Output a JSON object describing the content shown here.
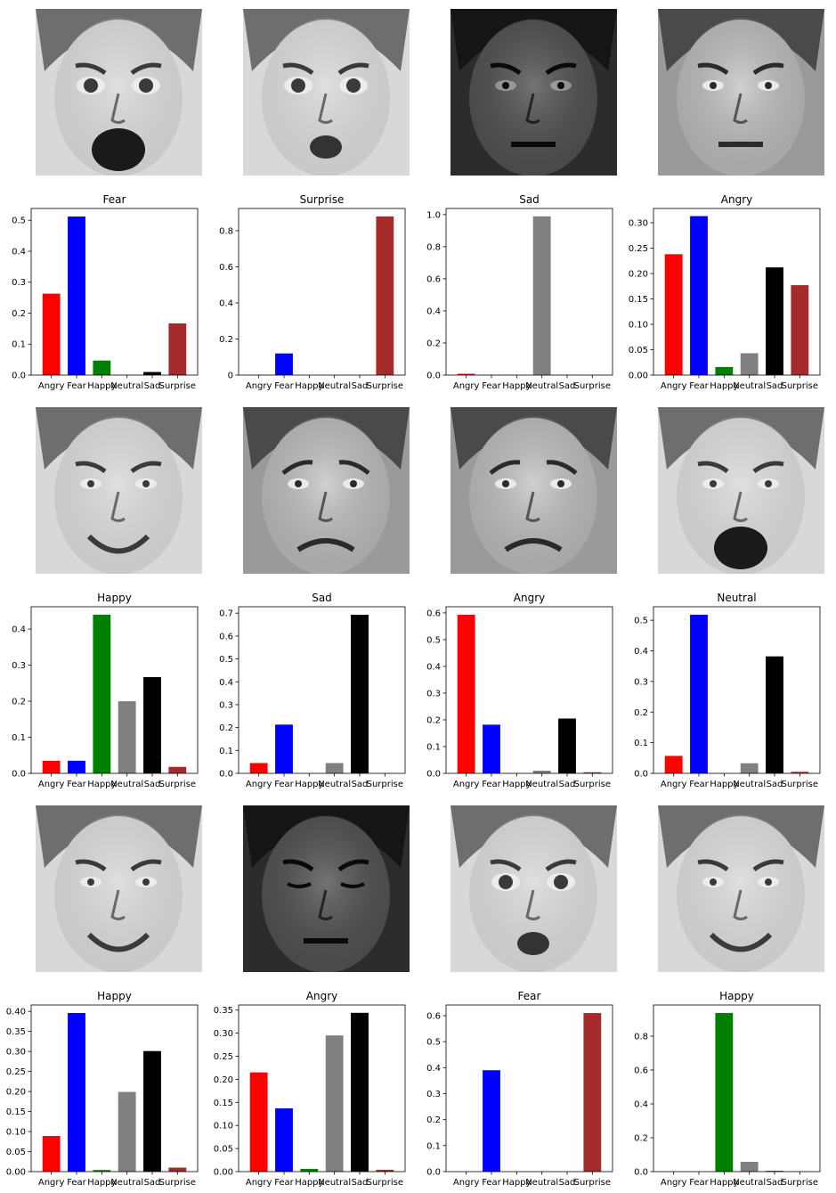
{
  "colors": {
    "Angry": "#ff0000",
    "Fear": "#0000ff",
    "Happy": "#008000",
    "Neutral": "#808080",
    "Sad": "#000000",
    "Surprise": "#a52a2a"
  },
  "faces": [
    {
      "tone": "light",
      "expression": "scream"
    },
    {
      "tone": "light",
      "expression": "surprise"
    },
    {
      "tone": "dark",
      "expression": "neutral"
    },
    {
      "tone": "medium",
      "expression": "neutral"
    },
    {
      "tone": "light",
      "expression": "smile"
    },
    {
      "tone": "medium",
      "expression": "worried"
    },
    {
      "tone": "medium",
      "expression": "frown"
    },
    {
      "tone": "light",
      "expression": "yawn"
    },
    {
      "tone": "light",
      "expression": "smile"
    },
    {
      "tone": "dark",
      "expression": "down"
    },
    {
      "tone": "light",
      "expression": "surprise"
    },
    {
      "tone": "light",
      "expression": "smile"
    }
  ],
  "chart_data": [
    {
      "type": "bar",
      "title": "Fear",
      "categories": [
        "Angry",
        "Fear",
        "Happy",
        "Neutral",
        "Sad",
        "Surprise"
      ],
      "values": [
        0.263,
        0.512,
        0.047,
        0.001,
        0.01,
        0.167
      ],
      "ylim": [
        0,
        0.538
      ],
      "yticks": [
        "0.0",
        "0.1",
        "0.2",
        "0.3",
        "0.4",
        "0.5"
      ],
      "ytick_values": [
        0,
        0.1,
        0.2,
        0.3,
        0.4,
        0.5
      ]
    },
    {
      "type": "bar",
      "title": "Surprise",
      "categories": [
        "Angry",
        "Fear",
        "Happy",
        "Neutral",
        "Sad",
        "Surprise"
      ],
      "values": [
        0.001,
        0.12,
        0.0,
        0.0,
        0.0,
        0.879
      ],
      "ylim": [
        0,
        0.923
      ],
      "yticks": [
        "0",
        "0.2",
        "0.4",
        "0.6",
        "0.8"
      ],
      "ytick_values": [
        0,
        0.2,
        0.4,
        0.6,
        0.8
      ]
    },
    {
      "type": "bar",
      "title": "Sad",
      "categories": [
        "Angry",
        "Fear",
        "Happy",
        "Neutral",
        "Sad",
        "Surprise"
      ],
      "values": [
        0.008,
        0.001,
        0.001,
        0.989,
        0.001,
        0.001
      ],
      "ylim": [
        0,
        1.038
      ],
      "yticks": [
        "0.0",
        "0.2",
        "0.4",
        "0.6",
        "0.8",
        "1.0"
      ],
      "ytick_values": [
        0,
        0.2,
        0.4,
        0.6,
        0.8,
        1.0
      ]
    },
    {
      "type": "bar",
      "title": "Angry",
      "categories": [
        "Angry",
        "Fear",
        "Happy",
        "Neutral",
        "Sad",
        "Surprise"
      ],
      "values": [
        0.238,
        0.313,
        0.016,
        0.043,
        0.212,
        0.177
      ],
      "ylim": [
        0,
        0.328
      ],
      "yticks": [
        "0.00",
        "0.05",
        "0.10",
        "0.15",
        "0.20",
        "0.25",
        "0.30"
      ],
      "ytick_values": [
        0,
        0.05,
        0.1,
        0.15,
        0.2,
        0.25,
        0.3
      ]
    },
    {
      "type": "bar",
      "title": "Happy",
      "categories": [
        "Angry",
        "Fear",
        "Happy",
        "Neutral",
        "Sad",
        "Surprise"
      ],
      "values": [
        0.035,
        0.035,
        0.44,
        0.2,
        0.267,
        0.018
      ],
      "ylim": [
        0,
        0.462
      ],
      "yticks": [
        "0.0",
        "0.1",
        "0.2",
        "0.3",
        "0.4"
      ],
      "ytick_values": [
        0,
        0.1,
        0.2,
        0.3,
        0.4
      ]
    },
    {
      "type": "bar",
      "title": "Sad",
      "categories": [
        "Angry",
        "Fear",
        "Happy",
        "Neutral",
        "Sad",
        "Surprise"
      ],
      "values": [
        0.045,
        0.213,
        0.0,
        0.045,
        0.693,
        0.0
      ],
      "ylim": [
        0,
        0.728
      ],
      "yticks": [
        "0.0",
        "0.1",
        "0.2",
        "0.3",
        "0.4",
        "0.5",
        "0.6",
        "0.7"
      ],
      "ytick_values": [
        0,
        0.1,
        0.2,
        0.3,
        0.4,
        0.5,
        0.6,
        0.7
      ]
    },
    {
      "type": "bar",
      "title": "Angry",
      "categories": [
        "Angry",
        "Fear",
        "Happy",
        "Neutral",
        "Sad",
        "Surprise"
      ],
      "values": [
        0.593,
        0.182,
        0.0,
        0.01,
        0.205,
        0.004
      ],
      "ylim": [
        0,
        0.623
      ],
      "yticks": [
        "0.0",
        "0.1",
        "0.2",
        "0.3",
        "0.4",
        "0.5",
        "0.6"
      ],
      "ytick_values": [
        0,
        0.1,
        0.2,
        0.3,
        0.4,
        0.5,
        0.6
      ]
    },
    {
      "type": "bar",
      "title": "Neutral",
      "categories": [
        "Angry",
        "Fear",
        "Happy",
        "Neutral",
        "Sad",
        "Surprise"
      ],
      "values": [
        0.057,
        0.518,
        0.0,
        0.033,
        0.382,
        0.005
      ],
      "ylim": [
        0,
        0.544
      ],
      "yticks": [
        "0.0",
        "0.1",
        "0.2",
        "0.3",
        "0.4",
        "0.5"
      ],
      "ytick_values": [
        0,
        0.1,
        0.2,
        0.3,
        0.4,
        0.5
      ]
    },
    {
      "type": "bar",
      "title": "Happy",
      "categories": [
        "Angry",
        "Fear",
        "Happy",
        "Neutral",
        "Sad",
        "Surprise"
      ],
      "values": [
        0.089,
        0.396,
        0.004,
        0.199,
        0.301,
        0.01
      ],
      "ylim": [
        0,
        0.416
      ],
      "yticks": [
        "0.00",
        "0.05",
        "0.10",
        "0.15",
        "0.20",
        "0.25",
        "0.30",
        "0.35",
        "0.40"
      ],
      "ytick_values": [
        0,
        0.05,
        0.1,
        0.15,
        0.2,
        0.25,
        0.3,
        0.35,
        0.4
      ]
    },
    {
      "type": "bar",
      "title": "Angry",
      "categories": [
        "Angry",
        "Fear",
        "Happy",
        "Neutral",
        "Sad",
        "Surprise"
      ],
      "values": [
        0.215,
        0.137,
        0.006,
        0.295,
        0.344,
        0.004
      ],
      "ylim": [
        0,
        0.361
      ],
      "yticks": [
        "0.00",
        "0.05",
        "0.10",
        "0.15",
        "0.20",
        "0.25",
        "0.30",
        "0.35"
      ],
      "ytick_values": [
        0,
        0.05,
        0.1,
        0.15,
        0.2,
        0.25,
        0.3,
        0.35
      ]
    },
    {
      "type": "bar",
      "title": "Fear",
      "categories": [
        "Angry",
        "Fear",
        "Happy",
        "Neutral",
        "Sad",
        "Surprise"
      ],
      "values": [
        0.0,
        0.39,
        0.0,
        0.0,
        0.0,
        0.61
      ],
      "ylim": [
        0,
        0.641
      ],
      "yticks": [
        "0.0",
        "0.1",
        "0.2",
        "0.3",
        "0.4",
        "0.5",
        "0.6"
      ],
      "ytick_values": [
        0,
        0.1,
        0.2,
        0.3,
        0.4,
        0.5,
        0.6
      ]
    },
    {
      "type": "bar",
      "title": "Happy",
      "categories": [
        "Angry",
        "Fear",
        "Happy",
        "Neutral",
        "Sad",
        "Surprise"
      ],
      "values": [
        0.0,
        0.0,
        0.937,
        0.058,
        0.004,
        0.001
      ],
      "ylim": [
        0,
        0.984
      ],
      "yticks": [
        "0.0",
        "0.2",
        "0.4",
        "0.6",
        "0.8"
      ],
      "ytick_values": [
        0,
        0.2,
        0.4,
        0.6,
        0.8
      ]
    }
  ]
}
